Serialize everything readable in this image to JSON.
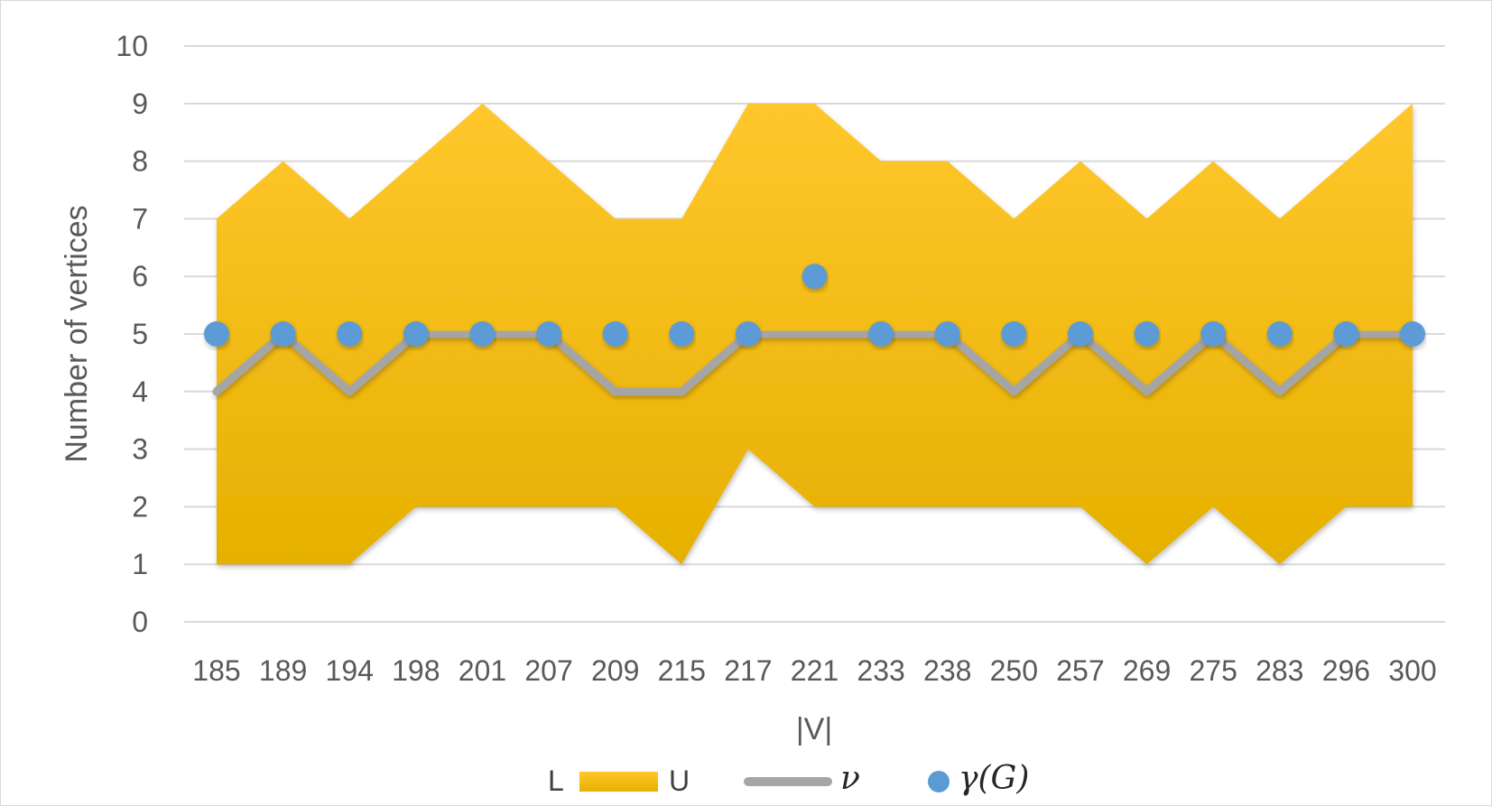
{
  "chart_data": {
    "type": "line",
    "categories": [
      "185",
      "189",
      "194",
      "198",
      "201",
      "207",
      "209",
      "215",
      "217",
      "221",
      "233",
      "238",
      "250",
      "257",
      "269",
      "275",
      "283",
      "296",
      "300"
    ],
    "series": [
      {
        "name": "L",
        "values": [
          1,
          1,
          1,
          2,
          2,
          2,
          2,
          1,
          3,
          2,
          2,
          2,
          2,
          2,
          1,
          2,
          1,
          2,
          2
        ]
      },
      {
        "name": "U",
        "values": [
          7,
          8,
          7,
          8,
          9,
          8,
          7,
          7,
          9,
          9,
          8,
          8,
          7,
          8,
          7,
          8,
          7,
          8,
          9
        ]
      },
      {
        "name": "ν",
        "values": [
          4,
          5,
          4,
          5,
          5,
          5,
          4,
          4,
          5,
          5,
          5,
          5,
          4,
          5,
          4,
          5,
          4,
          5,
          5
        ]
      },
      {
        "name": "γ(G)",
        "values": [
          5,
          5,
          5,
          5,
          5,
          5,
          5,
          5,
          5,
          6,
          5,
          5,
          5,
          5,
          5,
          5,
          5,
          5,
          5
        ]
      }
    ],
    "xlabel": "|V|",
    "ylabel": "Number of vertices",
    "ylim": [
      0,
      10
    ],
    "yticks": [
      "0",
      "1",
      "2",
      "3",
      "4",
      "5",
      "6",
      "7",
      "8",
      "9",
      "10"
    ],
    "grid": true,
    "legend_position": "bottom",
    "legend": {
      "band_low": "L",
      "band_high": "U",
      "line": "ν",
      "points": "γ(G)"
    },
    "colors": {
      "band_top": "#ffc72c",
      "band_bottom": "#e6b000",
      "line": "#a5a5a5",
      "points": "#5b9bd5",
      "grid": "#d9d9d9",
      "text": "#595959"
    }
  }
}
